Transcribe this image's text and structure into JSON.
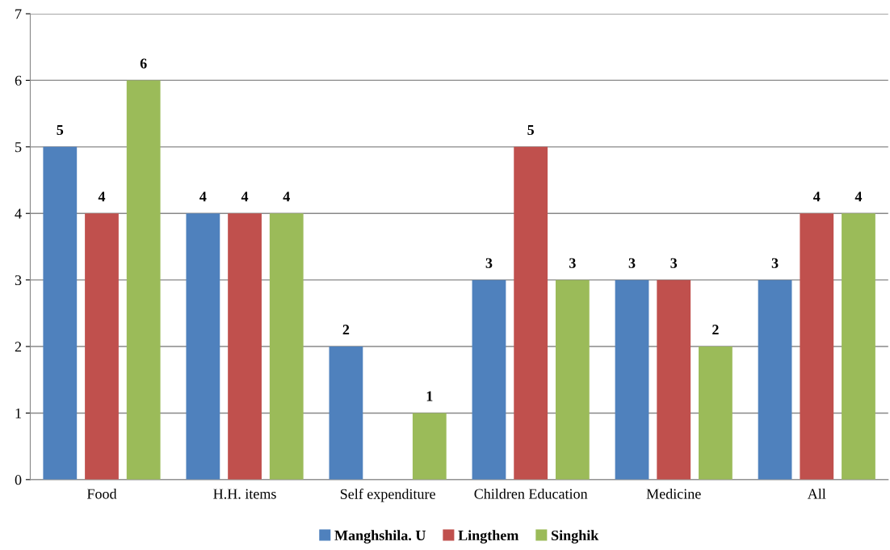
{
  "chart_data": {
    "type": "bar",
    "categories": [
      "Food",
      "H.H. items",
      "Self expenditure",
      "Children Education",
      "Medicine",
      "All"
    ],
    "series": [
      {
        "name": "Manghshila. U",
        "color": "#4f81bd",
        "values": [
          5,
          4,
          2,
          3,
          3,
          3
        ]
      },
      {
        "name": "Lingthem",
        "color": "#c0504d",
        "values": [
          4,
          4,
          null,
          5,
          3,
          4
        ]
      },
      {
        "name": "Singhik",
        "color": "#9bbb59",
        "values": [
          6,
          4,
          1,
          3,
          2,
          4
        ]
      }
    ],
    "ylim": [
      0,
      7
    ],
    "yticks": [
      0,
      1,
      2,
      3,
      4,
      5,
      6,
      7
    ],
    "grid": "y",
    "legend": "bottom",
    "data_labels": true
  }
}
